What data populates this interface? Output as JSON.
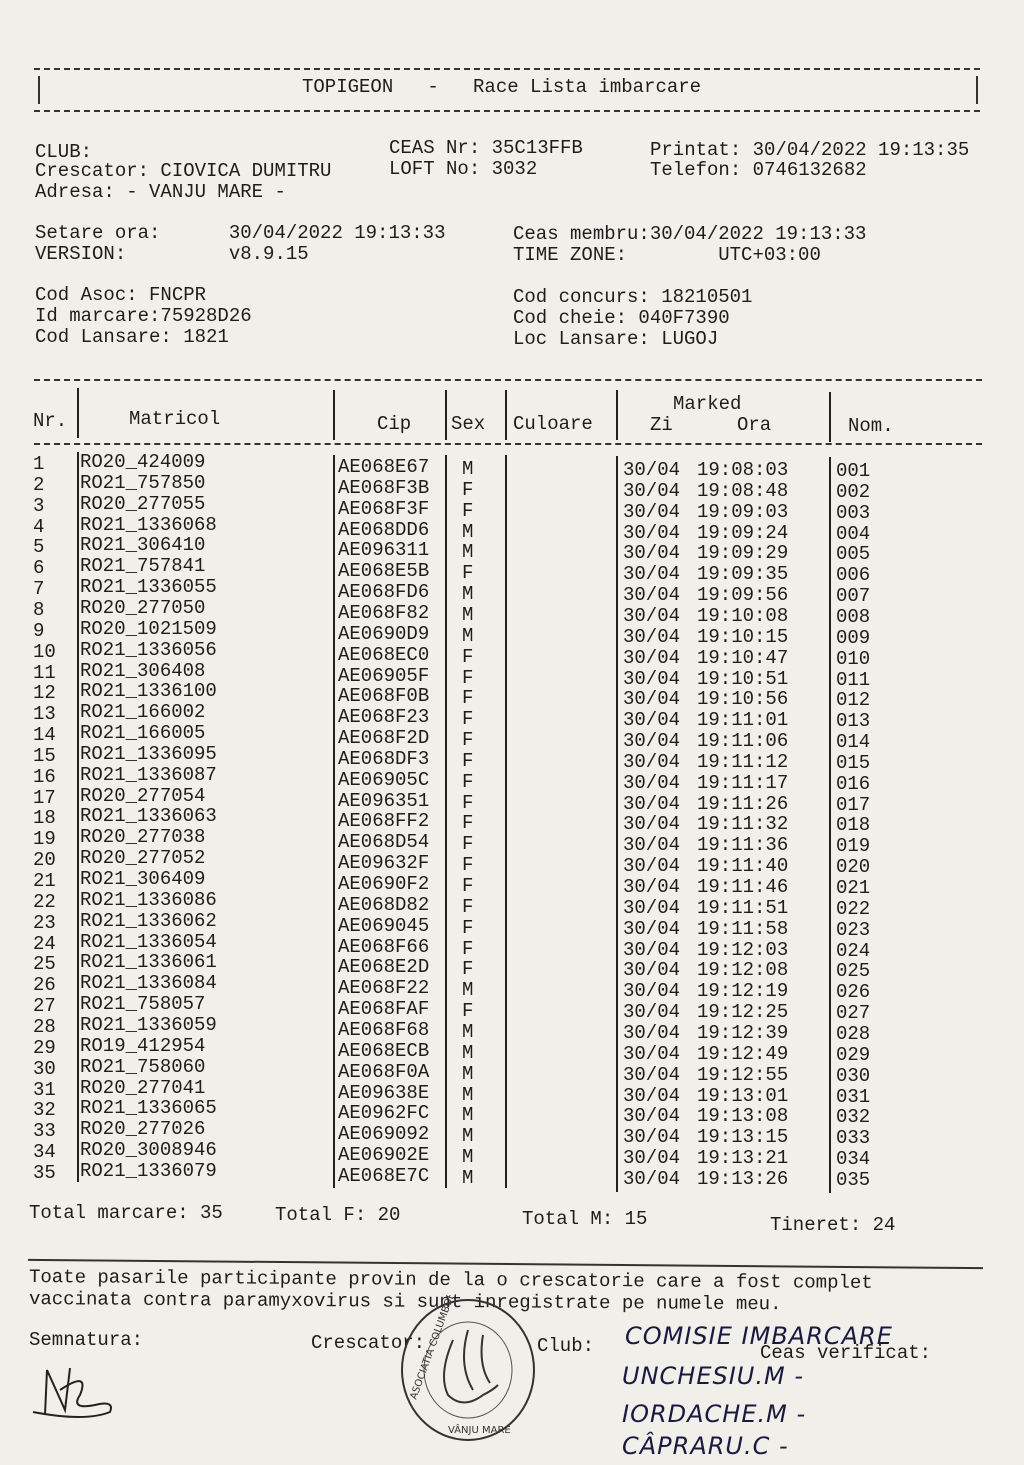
{
  "header": {
    "title": "TOPIGEON   -   Race Lista imbarcare"
  },
  "info": {
    "club": "CLUB:",
    "crescator": "Crescator: CIOVICA DUMITRU",
    "adresa": "Adresa: - VANJU MARE -",
    "ceas_nr": "CEAS Nr: 35C13FFB",
    "loft_no": "LOFT No: 3032",
    "printat": "Printat: 30/04/2022 19:13:35",
    "telefon": "Telefon: 0746132682",
    "setare_ora": "Setare ora:      30/04/2022 19:13:33",
    "version": "VERSION:         v8.9.15",
    "ceas_membru": "Ceas membru:30/04/2022 19:13:33",
    "time_zone": "TIME ZONE:        UTC+03:00",
    "cod_asoc": "Cod Asoc: FNCPR",
    "id_marcare": "Id marcare:75928D26",
    "cod_lansare": "Cod Lansare: 1821",
    "cod_concurs": "Cod concurs: 18210501",
    "cod_cheie": "Cod cheie: 040F7390",
    "loc_lansare": "Loc Lansare: LUGOJ"
  },
  "table": {
    "headers": {
      "nr": "Nr.",
      "matricol": "Matricol",
      "cip": "Cip",
      "sex": "Sex",
      "culoare": "Culoare",
      "marked": "Marked",
      "zi": "Zi",
      "ora": "Ora",
      "nom": "Nom."
    },
    "rows": [
      {
        "nr": "1",
        "matricol": "RO20_424009",
        "cip": "AE068E67",
        "sex": "M",
        "culoare": "",
        "zi": "30/04",
        "ora": "19:08:03",
        "nom": "001"
      },
      {
        "nr": "2",
        "matricol": "RO21_757850",
        "cip": "AE068F3B",
        "sex": "F",
        "culoare": "",
        "zi": "30/04",
        "ora": "19:08:48",
        "nom": "002"
      },
      {
        "nr": "3",
        "matricol": "RO20_277055",
        "cip": "AE068F3F",
        "sex": "F",
        "culoare": "",
        "zi": "30/04",
        "ora": "19:09:03",
        "nom": "003"
      },
      {
        "nr": "4",
        "matricol": "RO21_1336068",
        "cip": "AE068DD6",
        "sex": "M",
        "culoare": "",
        "zi": "30/04",
        "ora": "19:09:24",
        "nom": "004"
      },
      {
        "nr": "5",
        "matricol": "RO21_306410",
        "cip": "AE096311",
        "sex": "M",
        "culoare": "",
        "zi": "30/04",
        "ora": "19:09:29",
        "nom": "005"
      },
      {
        "nr": "6",
        "matricol": "RO21_757841",
        "cip": "AE068E5B",
        "sex": "F",
        "culoare": "",
        "zi": "30/04",
        "ora": "19:09:35",
        "nom": "006"
      },
      {
        "nr": "7",
        "matricol": "RO21_1336055",
        "cip": "AE068FD6",
        "sex": "M",
        "culoare": "",
        "zi": "30/04",
        "ora": "19:09:56",
        "nom": "007"
      },
      {
        "nr": "8",
        "matricol": "RO20_277050",
        "cip": "AE068F82",
        "sex": "M",
        "culoare": "",
        "zi": "30/04",
        "ora": "19:10:08",
        "nom": "008"
      },
      {
        "nr": "9",
        "matricol": "RO20_1021509",
        "cip": "AE0690D9",
        "sex": "M",
        "culoare": "",
        "zi": "30/04",
        "ora": "19:10:15",
        "nom": "009"
      },
      {
        "nr": "10",
        "matricol": "RO21_1336056",
        "cip": "AE068EC0",
        "sex": "F",
        "culoare": "",
        "zi": "30/04",
        "ora": "19:10:47",
        "nom": "010"
      },
      {
        "nr": "11",
        "matricol": "RO21_306408",
        "cip": "AE06905F",
        "sex": "F",
        "culoare": "",
        "zi": "30/04",
        "ora": "19:10:51",
        "nom": "011"
      },
      {
        "nr": "12",
        "matricol": "RO21_1336100",
        "cip": "AE068F0B",
        "sex": "F",
        "culoare": "",
        "zi": "30/04",
        "ora": "19:10:56",
        "nom": "012"
      },
      {
        "nr": "13",
        "matricol": "RO21_166002",
        "cip": "AE068F23",
        "sex": "F",
        "culoare": "",
        "zi": "30/04",
        "ora": "19:11:01",
        "nom": "013"
      },
      {
        "nr": "14",
        "matricol": "RO21_166005",
        "cip": "AE068F2D",
        "sex": "F",
        "culoare": "",
        "zi": "30/04",
        "ora": "19:11:06",
        "nom": "014"
      },
      {
        "nr": "15",
        "matricol": "RO21_1336095",
        "cip": "AE068DF3",
        "sex": "F",
        "culoare": "",
        "zi": "30/04",
        "ora": "19:11:12",
        "nom": "015"
      },
      {
        "nr": "16",
        "matricol": "RO21_1336087",
        "cip": "AE06905C",
        "sex": "F",
        "culoare": "",
        "zi": "30/04",
        "ora": "19:11:17",
        "nom": "016"
      },
      {
        "nr": "17",
        "matricol": "RO20_277054",
        "cip": "AE096351",
        "sex": "F",
        "culoare": "",
        "zi": "30/04",
        "ora": "19:11:26",
        "nom": "017"
      },
      {
        "nr": "18",
        "matricol": "RO21_1336063",
        "cip": "AE068FF2",
        "sex": "F",
        "culoare": "",
        "zi": "30/04",
        "ora": "19:11:32",
        "nom": "018"
      },
      {
        "nr": "19",
        "matricol": "RO20_277038",
        "cip": "AE068D54",
        "sex": "F",
        "culoare": "",
        "zi": "30/04",
        "ora": "19:11:36",
        "nom": "019"
      },
      {
        "nr": "20",
        "matricol": "RO20_277052",
        "cip": "AE09632F",
        "sex": "F",
        "culoare": "",
        "zi": "30/04",
        "ora": "19:11:40",
        "nom": "020"
      },
      {
        "nr": "21",
        "matricol": "RO21_306409",
        "cip": "AE0690F2",
        "sex": "F",
        "culoare": "",
        "zi": "30/04",
        "ora": "19:11:46",
        "nom": "021"
      },
      {
        "nr": "22",
        "matricol": "RO21_1336086",
        "cip": "AE068D82",
        "sex": "F",
        "culoare": "",
        "zi": "30/04",
        "ora": "19:11:51",
        "nom": "022"
      },
      {
        "nr": "23",
        "matricol": "RO21_1336062",
        "cip": "AE069045",
        "sex": "F",
        "culoare": "",
        "zi": "30/04",
        "ora": "19:11:58",
        "nom": "023"
      },
      {
        "nr": "24",
        "matricol": "RO21_1336054",
        "cip": "AE068F66",
        "sex": "F",
        "culoare": "",
        "zi": "30/04",
        "ora": "19:12:03",
        "nom": "024"
      },
      {
        "nr": "25",
        "matricol": "RO21_1336061",
        "cip": "AE068E2D",
        "sex": "F",
        "culoare": "",
        "zi": "30/04",
        "ora": "19:12:08",
        "nom": "025"
      },
      {
        "nr": "26",
        "matricol": "RO21_1336084",
        "cip": "AE068F22",
        "sex": "M",
        "culoare": "",
        "zi": "30/04",
        "ora": "19:12:19",
        "nom": "026"
      },
      {
        "nr": "27",
        "matricol": "RO21_758057",
        "cip": "AE068FAF",
        "sex": "F",
        "culoare": "",
        "zi": "30/04",
        "ora": "19:12:25",
        "nom": "027"
      },
      {
        "nr": "28",
        "matricol": "RO21_1336059",
        "cip": "AE068F68",
        "sex": "M",
        "culoare": "",
        "zi": "30/04",
        "ora": "19:12:39",
        "nom": "028"
      },
      {
        "nr": "29",
        "matricol": "RO19_412954",
        "cip": "AE068ECB",
        "sex": "M",
        "culoare": "",
        "zi": "30/04",
        "ora": "19:12:49",
        "nom": "029"
      },
      {
        "nr": "30",
        "matricol": "RO21_758060",
        "cip": "AE068F0A",
        "sex": "M",
        "culoare": "",
        "zi": "30/04",
        "ora": "19:12:55",
        "nom": "030"
      },
      {
        "nr": "31",
        "matricol": "RO20_277041",
        "cip": "AE09638E",
        "sex": "M",
        "culoare": "",
        "zi": "30/04",
        "ora": "19:13:01",
        "nom": "031"
      },
      {
        "nr": "32",
        "matricol": "RO21_1336065",
        "cip": "AE0962FC",
        "sex": "M",
        "culoare": "",
        "zi": "30/04",
        "ora": "19:13:08",
        "nom": "032"
      },
      {
        "nr": "33",
        "matricol": "RO20_277026",
        "cip": "AE069092",
        "sex": "M",
        "culoare": "",
        "zi": "30/04",
        "ora": "19:13:15",
        "nom": "033"
      },
      {
        "nr": "34",
        "matricol": "RO20_3008946",
        "cip": "AE06902E",
        "sex": "M",
        "culoare": "",
        "zi": "30/04",
        "ora": "19:13:21",
        "nom": "034"
      },
      {
        "nr": "35",
        "matricol": "RO21_1336079",
        "cip": "AE068E7C",
        "sex": "M",
        "culoare": "",
        "zi": "30/04",
        "ora": "19:13:26",
        "nom": "035"
      }
    ]
  },
  "totals": {
    "total_marcare": "Total marcare: 35",
    "total_f": "Total F: 20",
    "total_m": "Total M: 15",
    "tineret": "Tineret: 24"
  },
  "footer": {
    "statement_line1": "Toate pasarile participante provin de la o crescatorie care a fost complet",
    "statement_line2": "vaccinata contra paramyxovirus si sunt inregistrate pe numele meu.",
    "semnatura": "Semnatura:",
    "crescator": "Crescator:",
    "club": "Club:",
    "ceas_verificat": "Ceas verificat:",
    "handwritten": [
      "COMISIE IMBARCARE",
      "UNCHESIU.M -",
      "IORDACHE.M -",
      "CÂPRARU.C -"
    ],
    "stamp_text": "ASOCIATIA COLUMBOFILA DROBETA-MEHEDINTI • VÂNJU MARE •"
  }
}
